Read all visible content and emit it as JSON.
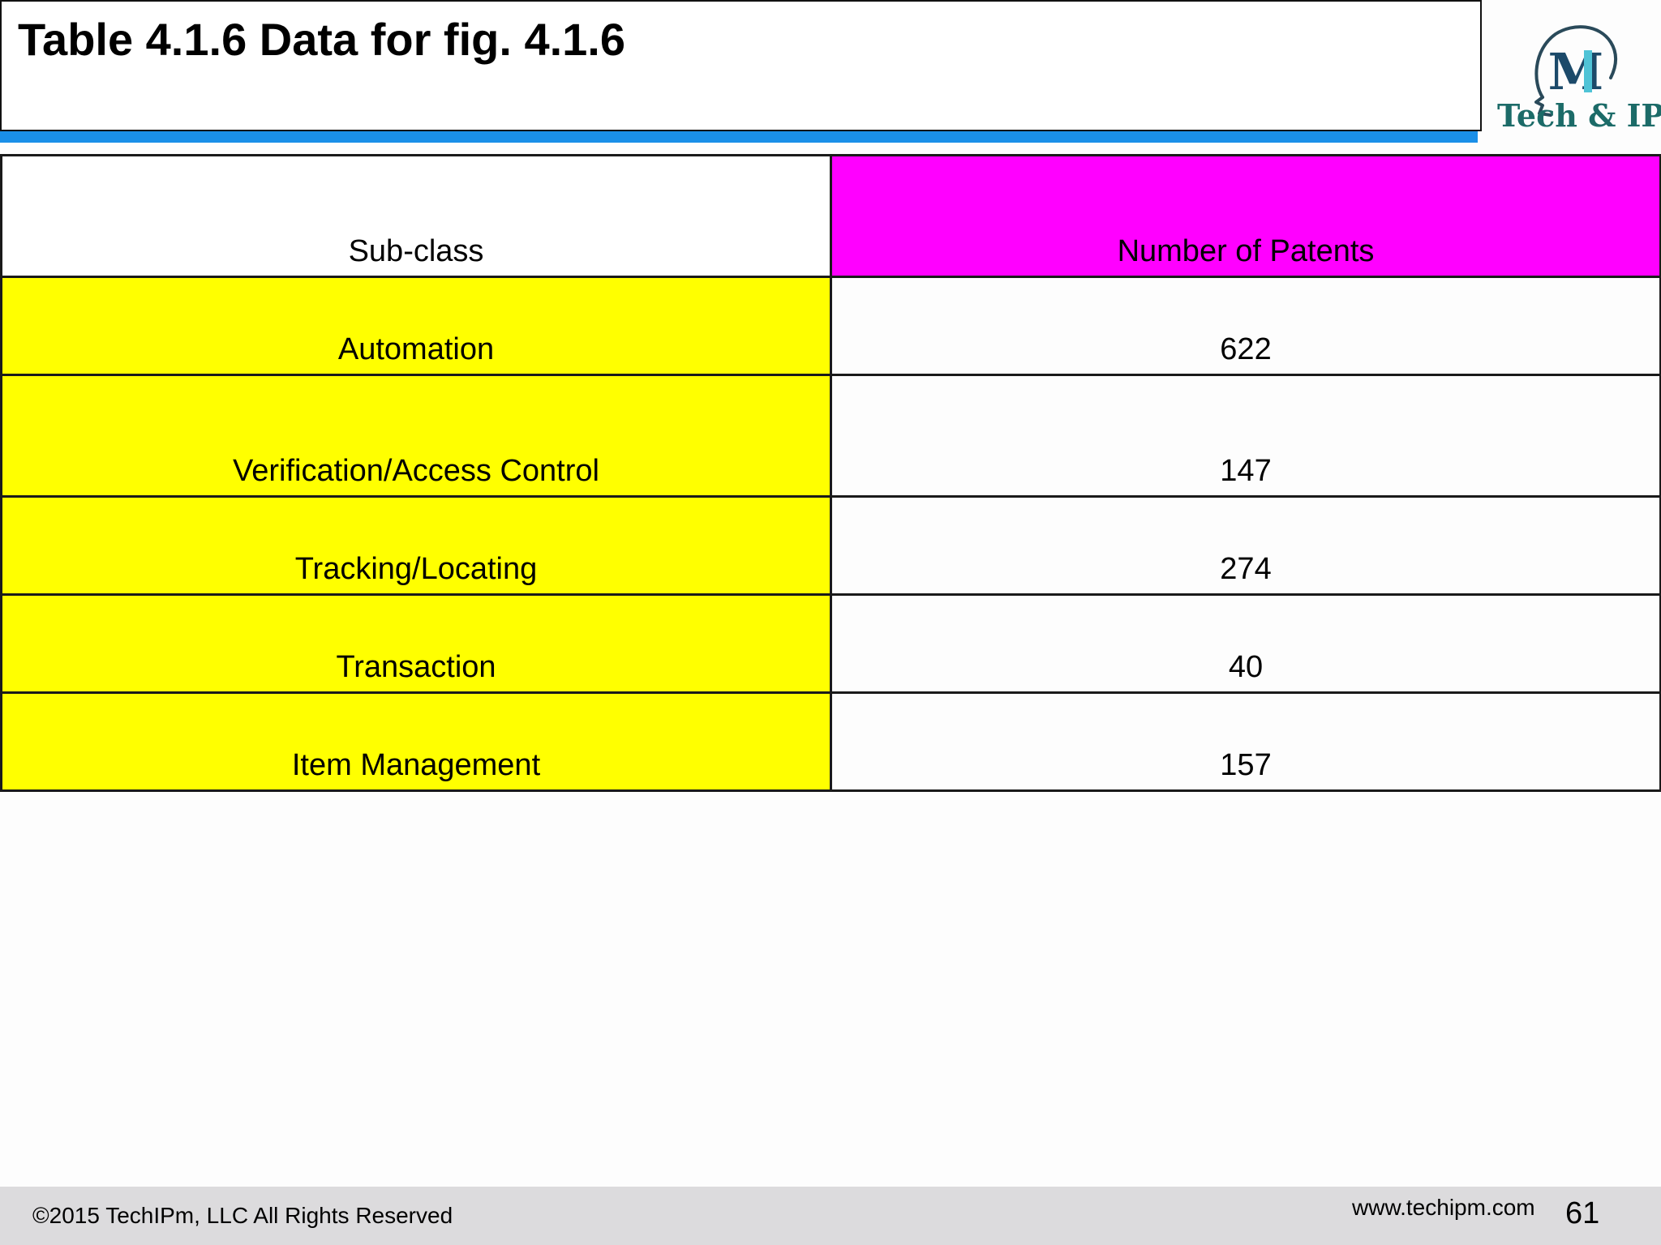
{
  "slide": {
    "title": "Table 4.1.6 Data for fig. 4.1.6"
  },
  "logo": {
    "text": "Tech & IP",
    "monogram": "M",
    "icon": "head-profile-icon",
    "colors": {
      "teal": "#1c6b68",
      "light_blue": "#4fc3d6"
    }
  },
  "table": {
    "headers": [
      "Sub-class",
      "Number of Patents"
    ],
    "header_colors": [
      "#ffffff",
      "#ff00ff"
    ],
    "category_color": "#ffff00",
    "rows": [
      {
        "subclass": "Automation",
        "count": "622"
      },
      {
        "subclass": "Verification/Access Control",
        "count": "147"
      },
      {
        "subclass": "Tracking/Locating",
        "count": "274"
      },
      {
        "subclass": "Transaction",
        "count": "40"
      },
      {
        "subclass": "Item Management",
        "count": "157"
      }
    ]
  },
  "footer": {
    "copyright": "©2015 TechIPm, LLC All Rights Reserved",
    "website": "www.techipm.com",
    "page_number": "61"
  },
  "colors": {
    "accent_bar": "#1a8fe8",
    "footer_bg": "#dcdbdd"
  }
}
